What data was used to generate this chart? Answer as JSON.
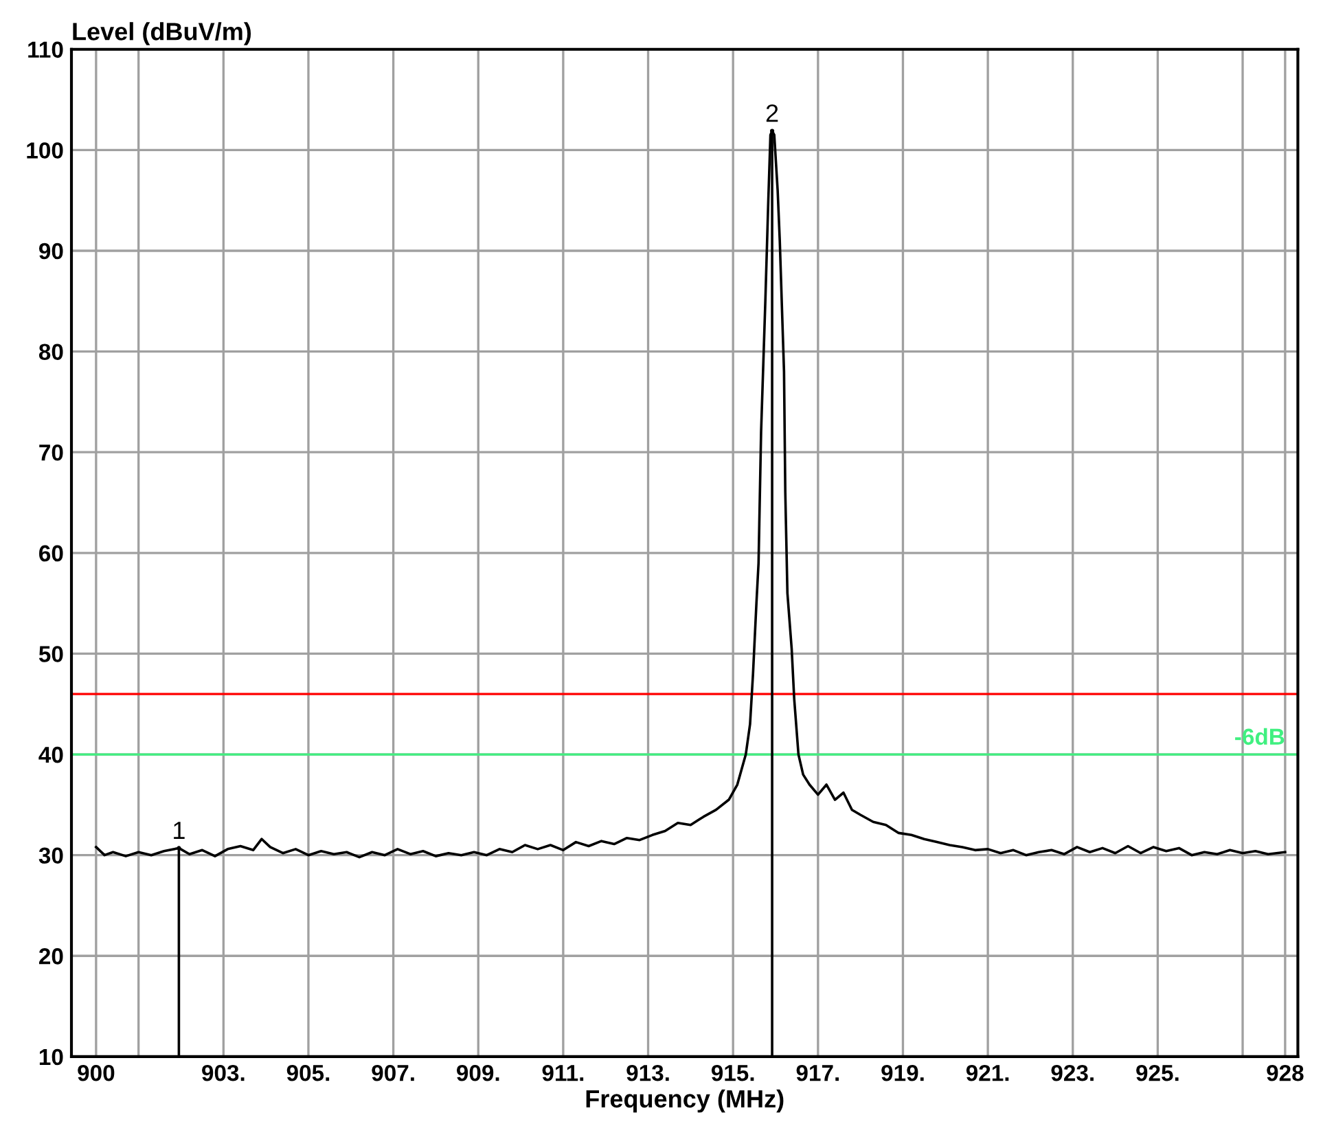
{
  "chart_data": {
    "type": "line",
    "xlabel": "Frequency (MHz)",
    "ylabel": "Level (dBuV/m)",
    "xlim": [
      899.42,
      928.3
    ],
    "ylim": [
      10,
      110
    ],
    "xticks": [
      900,
      {
        "value": 901,
        "label": null
      },
      {
        "value": 903,
        "label": "903."
      },
      {
        "value": 905,
        "label": "905."
      },
      {
        "value": 907,
        "label": "907."
      },
      {
        "value": 909,
        "label": "909."
      },
      {
        "value": 911,
        "label": "911."
      },
      {
        "value": 913,
        "label": "913."
      },
      {
        "value": 915,
        "label": "915."
      },
      {
        "value": 917,
        "label": "917."
      },
      {
        "value": 919,
        "label": "919."
      },
      {
        "value": 921,
        "label": "921."
      },
      {
        "value": 923,
        "label": "923."
      },
      {
        "value": 925,
        "label": "925."
      },
      {
        "value": 927,
        "label": null
      },
      928
    ],
    "yticks": [
      10,
      20,
      30,
      40,
      50,
      60,
      70,
      80,
      90,
      100,
      110
    ],
    "grid": true,
    "line_style": "solid",
    "x": [
      900.0,
      900.2,
      900.4,
      900.7,
      901.0,
      901.3,
      901.6,
      901.95,
      902.2,
      902.5,
      902.8,
      903.1,
      903.4,
      903.7,
      903.9,
      904.1,
      904.4,
      904.7,
      905.0,
      905.3,
      905.6,
      905.9,
      906.2,
      906.5,
      906.8,
      907.1,
      907.4,
      907.7,
      908.0,
      908.3,
      908.6,
      908.9,
      909.2,
      909.5,
      909.8,
      910.1,
      910.4,
      910.7,
      911.0,
      911.3,
      911.6,
      911.9,
      912.2,
      912.5,
      912.8,
      913.1,
      913.4,
      913.7,
      914.0,
      914.3,
      914.6,
      914.9,
      915.1,
      915.2,
      915.3,
      915.4,
      915.47,
      915.55,
      915.6,
      915.66,
      915.76,
      915.83,
      915.88,
      915.92,
      915.97,
      916.05,
      916.1,
      916.2,
      916.23,
      916.28,
      916.38,
      916.44,
      916.54,
      916.65,
      916.8,
      917.0,
      917.2,
      917.4,
      917.6,
      917.8,
      918.0,
      918.3,
      918.6,
      918.9,
      919.2,
      919.5,
      919.8,
      920.1,
      920.4,
      920.7,
      921.0,
      921.3,
      921.6,
      921.9,
      922.2,
      922.5,
      922.8,
      923.1,
      923.4,
      923.7,
      924.0,
      924.3,
      924.6,
      924.9,
      925.2,
      925.5,
      925.8,
      926.1,
      926.4,
      926.7,
      927.0,
      927.3,
      927.6,
      928.0
    ],
    "series": [
      {
        "color": "#000000",
        "marker": "none",
        "values": [
          30.8,
          30.0,
          30.3,
          29.9,
          30.3,
          30.0,
          30.4,
          30.7,
          30.1,
          30.5,
          29.9,
          30.6,
          30.9,
          30.5,
          31.6,
          30.8,
          30.2,
          30.6,
          30.0,
          30.4,
          30.1,
          30.3,
          29.8,
          30.3,
          30.0,
          30.6,
          30.1,
          30.4,
          29.9,
          30.2,
          30.0,
          30.3,
          30.0,
          30.6,
          30.3,
          31.0,
          30.6,
          31.0,
          30.5,
          31.3,
          30.9,
          31.4,
          31.1,
          31.7,
          31.5,
          32.0,
          32.4,
          33.2,
          33.0,
          33.8,
          34.5,
          35.5,
          37.0,
          38.5,
          40.0,
          43.0,
          48.0,
          55.0,
          59.0,
          72.0,
          85.0,
          95.0,
          101.5,
          101.9,
          101.5,
          96.0,
          91.0,
          78.0,
          66.0,
          56.0,
          50.5,
          45.5,
          40.0,
          38.0,
          37.0,
          36.0,
          37.0,
          35.5,
          36.2,
          34.5,
          34.0,
          33.3,
          33.0,
          32.2,
          32.0,
          31.6,
          31.3,
          31.0,
          30.8,
          30.5,
          30.6,
          30.2,
          30.5,
          30.0,
          30.3,
          30.5,
          30.1,
          30.8,
          30.3,
          30.7,
          30.2,
          30.9,
          30.2,
          30.8,
          30.4,
          30.7,
          30.0,
          30.3,
          30.1,
          30.5,
          30.2,
          30.4,
          30.1,
          30.3
        ]
      },
      {
        "type": "lollipop",
        "color": "#000000",
        "x": [
          901.95,
          915.92
        ],
        "values": [
          30.7,
          101.9
        ]
      }
    ],
    "ref_lines": [
      {
        "axis": "y",
        "value": 46,
        "color": "#ff0000"
      },
      {
        "axis": "y",
        "value": 40,
        "label": "-6dB",
        "color": "#40f080"
      }
    ],
    "annotations": [
      {
        "text": "1",
        "x": 901.95,
        "y": 30.7
      },
      {
        "text": "2",
        "x": 915.92,
        "y": 101.9
      }
    ]
  }
}
